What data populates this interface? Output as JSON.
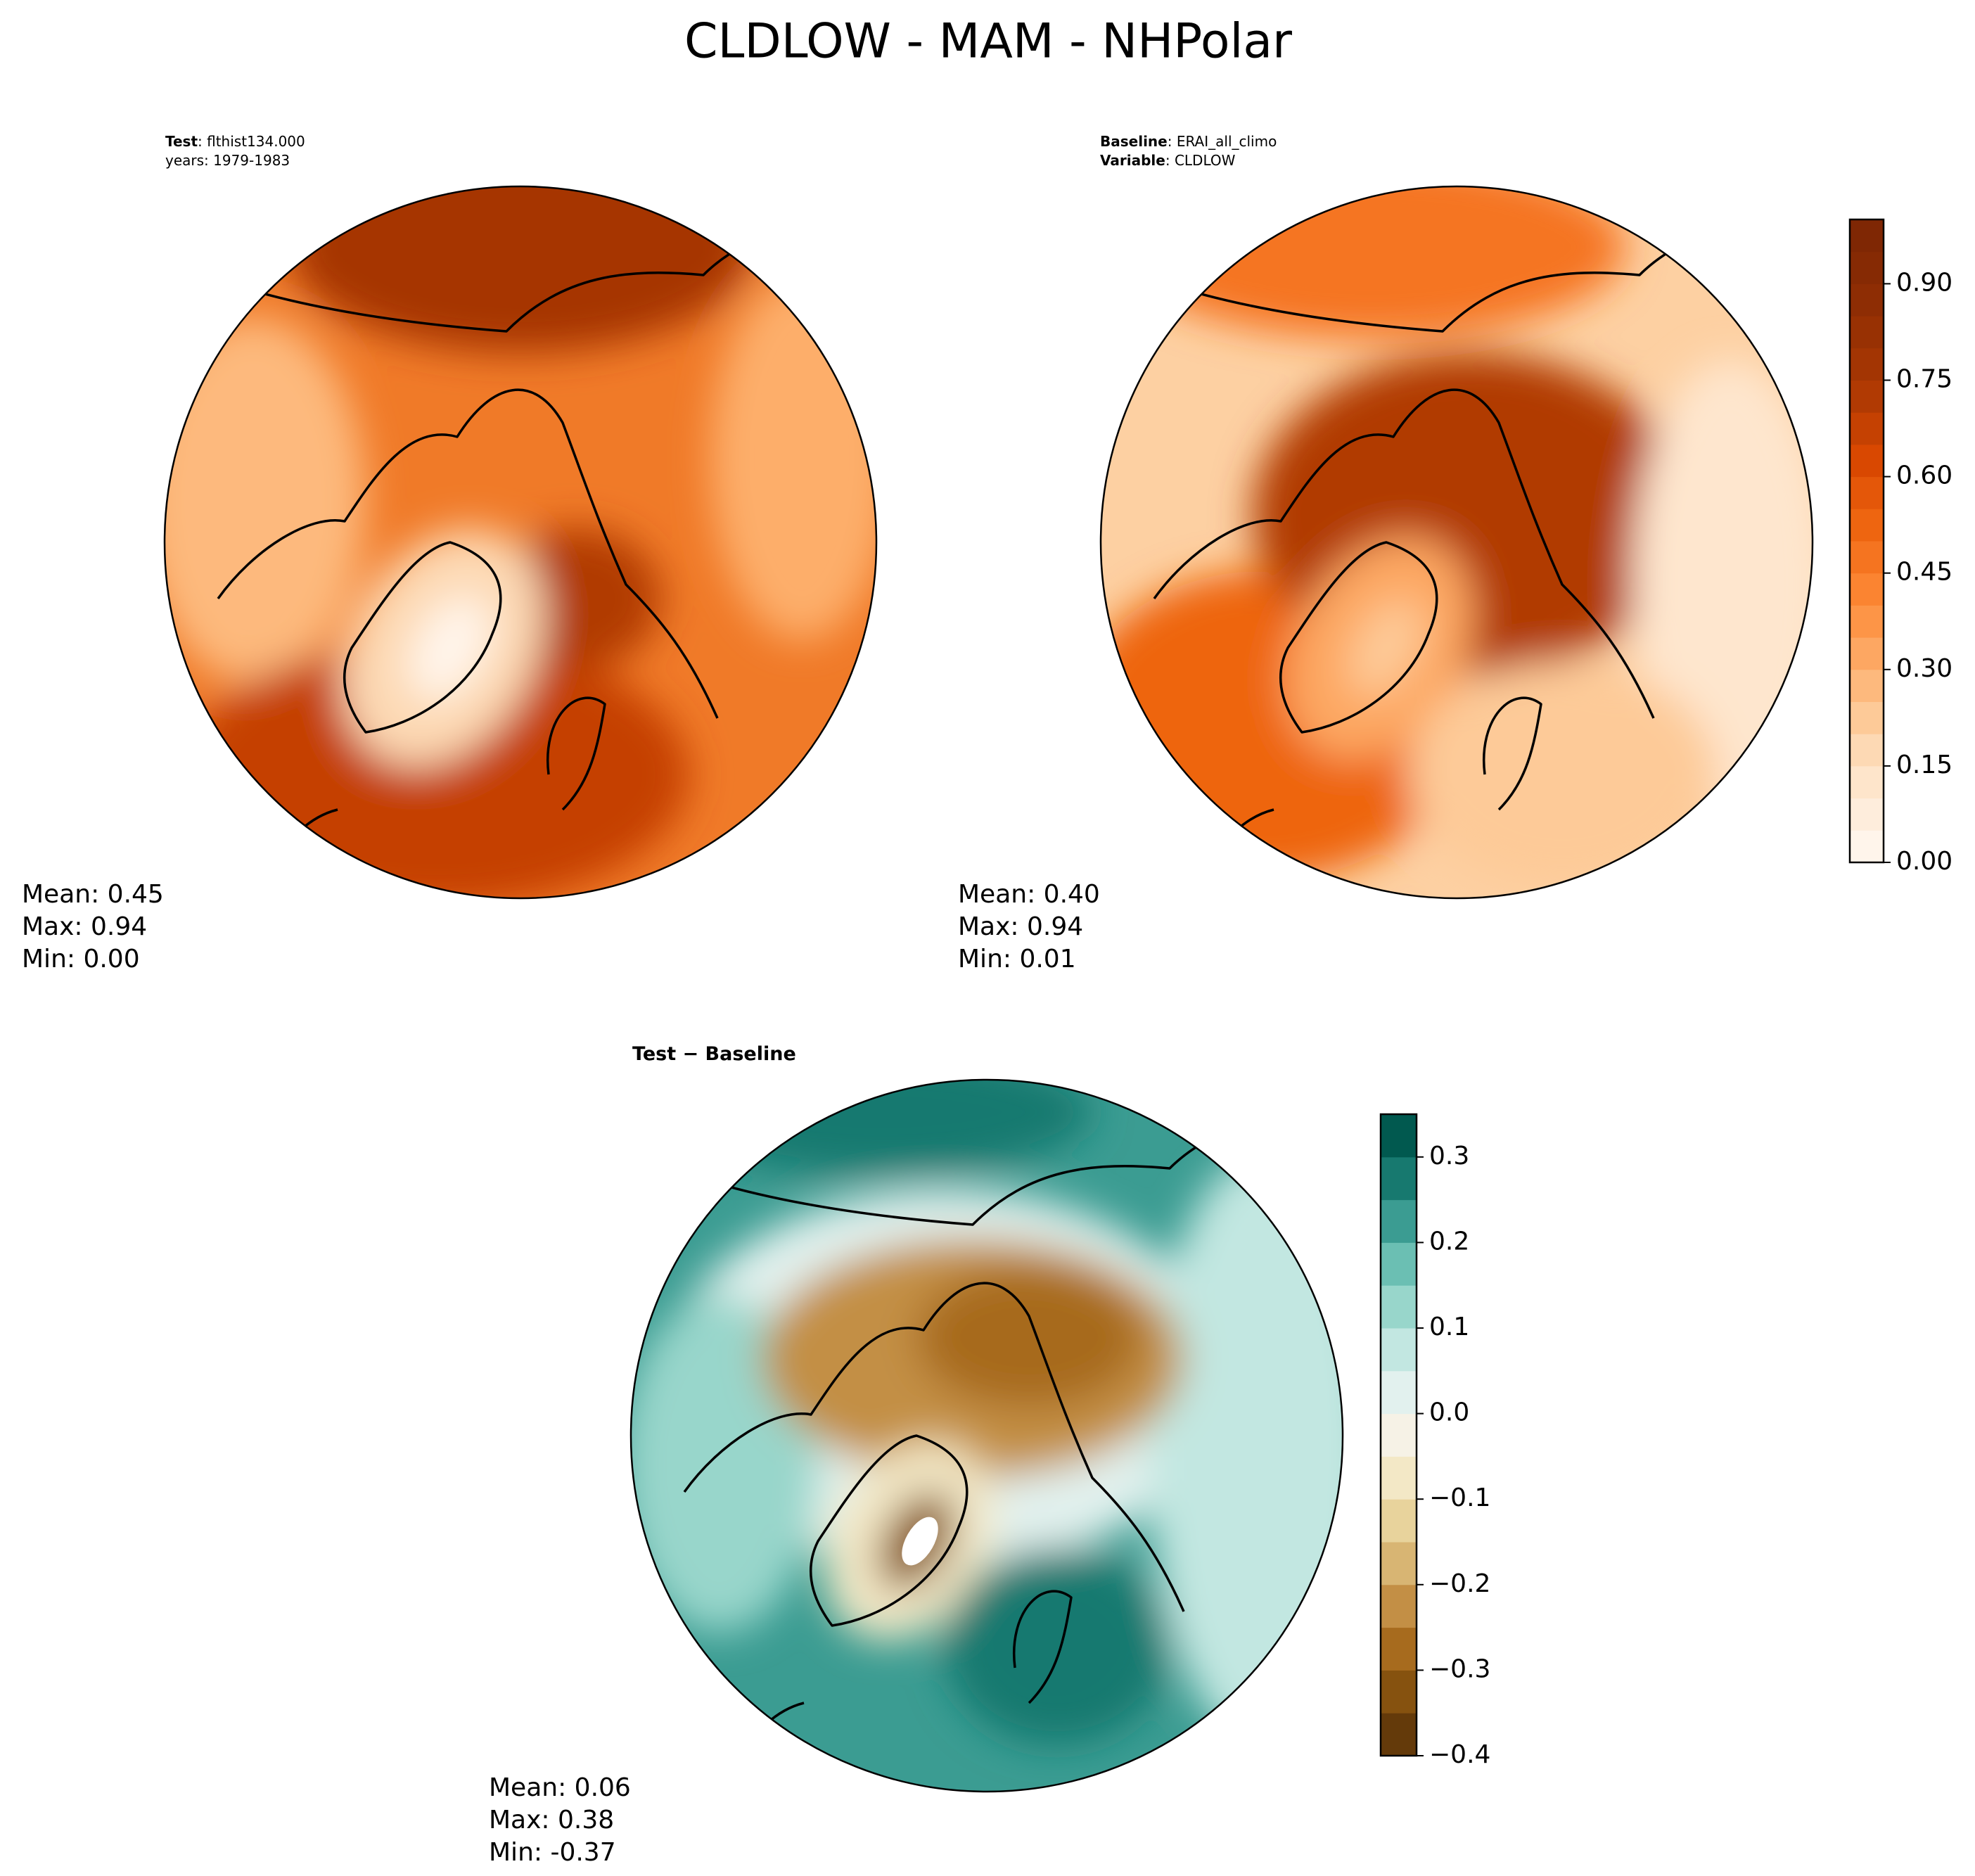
{
  "title": "CLDLOW - MAM - NHPolar",
  "chart_data": [
    {
      "type": "contour",
      "header": [
        {
          "key": "Test",
          "text": ": flthist134.000"
        },
        {
          "text": "years: 1979-1983"
        }
      ],
      "stats": [
        "Mean:  0.45",
        "Max:  0.94",
        "Min:  0.00"
      ]
    },
    {
      "type": "contour",
      "header": [
        {
          "key": "Baseline",
          "text": ": ERAI_all_climo"
        },
        {
          "key": "Variable",
          "text": ": CLDLOW"
        }
      ],
      "stats": [
        "Mean:  0.40",
        "Max:  0.94",
        "Min:  0.01"
      ],
      "colorbar": {
        "levels": [
          0,
          0.05,
          0.1,
          0.15,
          0.2,
          0.25,
          0.3,
          0.35,
          0.4,
          0.45,
          0.5,
          0.55,
          0.6,
          0.65,
          0.7,
          0.75,
          0.8,
          0.85,
          0.9,
          0.95,
          1.0
        ],
        "colors": [
          "#fff5eb",
          "#feeddc",
          "#fee5cb",
          "#fdd9b4",
          "#fdca98",
          "#fdb97d",
          "#fda762",
          "#fd9547",
          "#fb8431",
          "#f57420",
          "#ee6510",
          "#e45709",
          "#d94801",
          "#c54102",
          "#b13a03",
          "#a33503",
          "#983103",
          "#8e2d04",
          "#862a04",
          "#7f2704"
        ],
        "lim": [
          0,
          1.0
        ],
        "ticks": [
          {
            "value": 0,
            "label": "0.00"
          },
          0.15,
          {
            "value": 0.3,
            "label": "0.30"
          },
          0.45,
          {
            "value": 0.6,
            "label": "0.60"
          },
          0.75,
          {
            "value": 0.9,
            "label": "0.90"
          }
        ]
      }
    },
    {
      "type": "contour",
      "header": [
        {
          "key": "Test − Baseline"
        }
      ],
      "stats": [
        "Mean:  0.06",
        "Max:  0.38",
        "Min: -0.37"
      ],
      "colorbar": {
        "levels": [
          -0.4,
          -0.35,
          -0.3,
          -0.25,
          -0.2,
          -0.15,
          -0.1,
          -0.05,
          0,
          0.05,
          0.1,
          0.15,
          0.2,
          0.25,
          0.3,
          0.35
        ],
        "colors": [
          "#643a0a",
          "#86520f",
          "#a76b1e",
          "#c38f45",
          "#d8b573",
          "#e8d39c",
          "#f3e8c6",
          "#f6f2e6",
          "#e2f1ee",
          "#c2e7e1",
          "#98d6cb",
          "#6bbfb3",
          "#3b9c92",
          "#17796f",
          "#01594f"
        ],
        "lim": [
          -0.4,
          0.35
        ],
        "ticks": [
          {
            "value": -0.4,
            "label": "−0.4"
          },
          {
            "value": -0.3,
            "label": "−0.3"
          },
          {
            "value": -0.2,
            "label": "−0.2"
          },
          {
            "value": -0.1,
            "label": "−0.1"
          },
          {
            "value": 0,
            "label": "0.0"
          },
          0.1,
          0.2,
          0.3
        ]
      }
    }
  ]
}
